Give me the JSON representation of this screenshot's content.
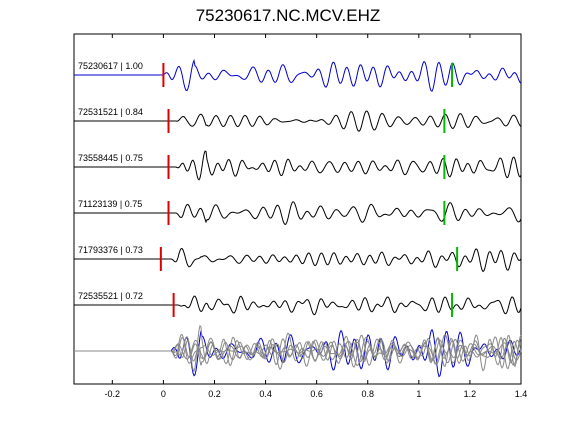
{
  "title": "75230617.NC.MCV.EHZ",
  "colors": {
    "reference": "#0000cc",
    "trace": "#000000",
    "stack_gray": "#888888",
    "pick_p": "#dd0000",
    "pick_s": "#00bb00"
  },
  "chart_data": {
    "type": "line",
    "title": "75230617.NC.MCV.EHZ",
    "xlabel": "",
    "ylabel": "",
    "xlim": [
      -0.35,
      1.4
    ],
    "xticks": [
      -0.2,
      0,
      0.2,
      0.4,
      0.6,
      0.8,
      1,
      1.2,
      1.4
    ],
    "xtick_labels": [
      "-0.2",
      "0",
      "0.2",
      "0.4",
      "0.6",
      "0.8",
      "1",
      "1.2",
      "1.4"
    ],
    "grid": false,
    "series": [
      {
        "name": "75230617 | 1.00",
        "label": "75230617 | 1.00",
        "color": "#0000cc",
        "onset": 0.0,
        "p_pick": 0.0,
        "s_pick": 1.13,
        "seed": 1,
        "amp": 1.0
      },
      {
        "name": "72531521 | 0.84",
        "label": "72531521 | 0.84",
        "color": "#000000",
        "onset": 0.05,
        "p_pick": 0.02,
        "s_pick": 1.1,
        "seed": 2,
        "amp": 0.75
      },
      {
        "name": "73558445 | 0.75",
        "label": "73558445 | 0.75",
        "color": "#000000",
        "onset": 0.05,
        "p_pick": 0.02,
        "s_pick": 1.1,
        "seed": 3,
        "amp": 0.8
      },
      {
        "name": "71123139 | 0.75",
        "label": "71123139 | 0.75",
        "color": "#000000",
        "onset": 0.05,
        "p_pick": 0.02,
        "s_pick": 1.1,
        "seed": 4,
        "amp": 0.8
      },
      {
        "name": "71793376 | 0.73",
        "label": "71793376 | 0.73",
        "color": "#000000",
        "onset": 0.03,
        "p_pick": -0.01,
        "s_pick": 1.15,
        "seed": 5,
        "amp": 0.8
      },
      {
        "name": "72535521 | 0.72",
        "label": "72535521 | 0.72",
        "color": "#000000",
        "onset": 0.06,
        "p_pick": 0.04,
        "s_pick": 1.13,
        "seed": 6,
        "amp": 0.75
      }
    ],
    "stack": {
      "onset": 0.0
    }
  }
}
